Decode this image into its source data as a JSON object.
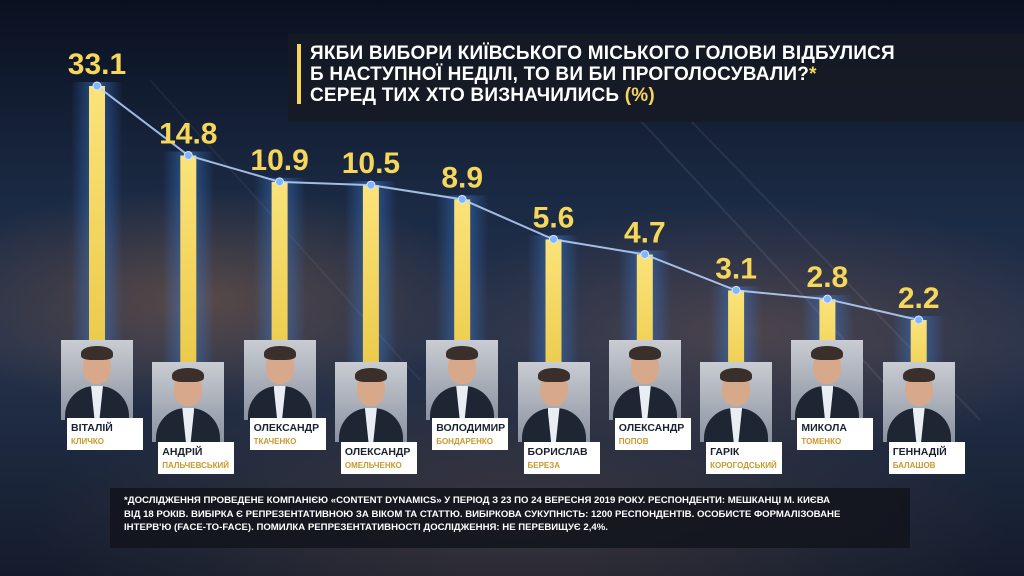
{
  "title": {
    "line1": "ЯКБИ ВИБОРИ КИЇВСЬКОГО МІСЬКОГО ГОЛОВИ ВІДБУЛИСЯ",
    "line2": "Б НАСТУПНОЇ НЕДІЛІ, ТО ВИ БИ ПРОГОЛОСУВАЛИ?",
    "line2_mark": "*",
    "line3": "СЕРЕД ТИХ ХТО ВИЗНАЧИЛИСЬ",
    "line3_unit": "(%)"
  },
  "colors": {
    "bar": "#f6d65a",
    "bar_glow": "#3d7fd8",
    "trend_line": "#bcd6ff",
    "value_text": "#f7d75a",
    "surname_text": "#c59a2e"
  },
  "chart_data": {
    "type": "bar",
    "categories": [
      "ВІТАЛІЙ КЛИЧКО",
      "АНДРІЙ ПАЛЬЧЕВСЬКИЙ",
      "ОЛЕКСАНДР ТКАЧЕНКО",
      "ОЛЕКСАНДР ОМЕЛЬЧЕНКО",
      "ВОЛОДИМИР БОНДАРЕНКО",
      "БОРИСЛАВ БЕРЕЗА",
      "ОЛЕКСАНДР ПОПОВ",
      "ГАРІК КОРОГОДСЬКИЙ",
      "МИКОЛА ТОМЕНКО",
      "ГЕННАДІЙ БАЛАШОВ"
    ],
    "value_labels": [
      "33.1",
      "14.8",
      "10.9",
      "10.5",
      "8.9",
      "5.6",
      "4.7",
      "3.1",
      "2.8",
      "2.2"
    ],
    "values": [
      33.1,
      14.8,
      10.9,
      10.5,
      8.9,
      5.6,
      4.7,
      3.1,
      2.8,
      2.2
    ],
    "trend_line": true,
    "grid": false,
    "legend": "none"
  },
  "candidates": [
    {
      "first": "ВІТАЛІЙ",
      "last": "КЛИЧКО",
      "icon": "portrait-photo"
    },
    {
      "first": "АНДРІЙ",
      "last": "ПАЛЬЧЕВСЬКИЙ",
      "icon": "portrait-photo"
    },
    {
      "first": "ОЛЕКСАНДР",
      "last": "ТКАЧЕНКО",
      "icon": "portrait-photo"
    },
    {
      "first": "ОЛЕКСАНДР",
      "last": "ОМЕЛЬЧЕНКО",
      "icon": "portrait-photo"
    },
    {
      "first": "ВОЛОДИМИР",
      "last": "БОНДАРЕНКО",
      "icon": "portrait-photo"
    },
    {
      "first": "БОРИСЛАВ",
      "last": "БЕРЕЗА",
      "icon": "portrait-photo"
    },
    {
      "first": "ОЛЕКСАНДР",
      "last": "ПОПОВ",
      "icon": "portrait-photo"
    },
    {
      "first": "ГАРІК",
      "last": "КОРОГОДСЬКИЙ",
      "icon": "portrait-photo"
    },
    {
      "first": "МИКОЛА",
      "last": "ТОМЕНКО",
      "icon": "portrait-photo"
    },
    {
      "first": "ГЕННАДІЙ",
      "last": "БАЛАШОВ",
      "icon": "portrait-photo"
    }
  ],
  "footnote": {
    "line1": "*ДОСЛІДЖЕННЯ ПРОВЕДЕНЕ КОМПАНІЄЮ «CONTENT DYNAMICS» У ПЕРІОД З 23 ПО 24 ВЕРЕСНЯ 2019 РОКУ. РЕСПОНДЕНТИ:  МЕШКАНЦІ М. КИЄВА",
    "line2": "ВІД 18 РОКІВ. ВИБІРКА Є РЕПРЕЗЕНТАТИВНОЮ ЗА ВІКОМ ТА СТАТТЮ. ВИБІРКОВА СУКУПНІСТЬ: 1200 РЕСПОНДЕНТІВ. ОСОБИСТЕ ФОРМАЛІЗОВАНЕ",
    "line3": "ІНТЕРВ'Ю (FACE-TO-FACE). ПОМИЛКА РЕПРЕЗЕНТАТИВНОСТІ ДОСЛІДЖЕННЯ: НЕ ПЕРЕВИЩУЄ 2,4%."
  }
}
